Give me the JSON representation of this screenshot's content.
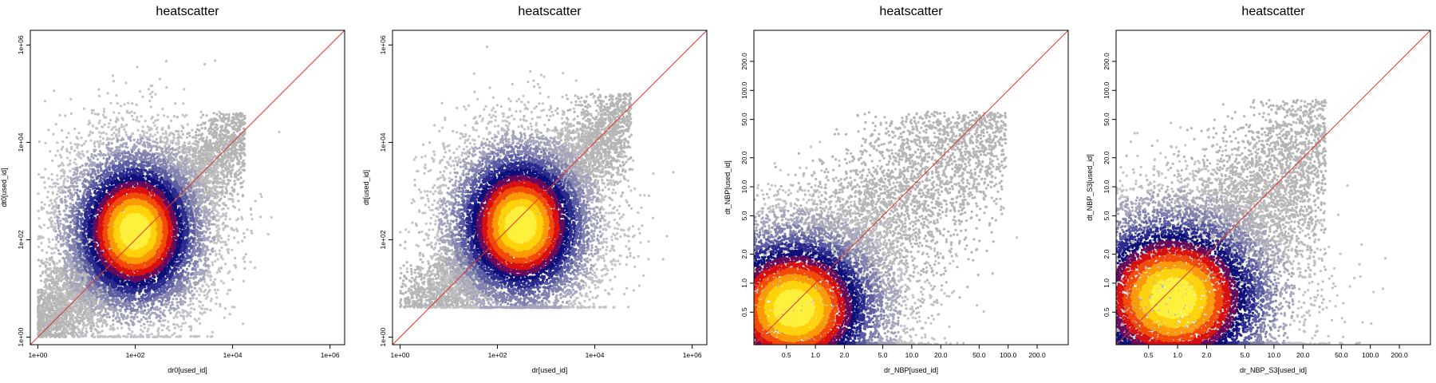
{
  "palette": {
    "outlier": "#b5b5b5",
    "density": [
      "#c2c2c8",
      "#a4a4bd",
      "#8282b0",
      "#5b5ca3",
      "#2a2a8f",
      "#0f0f7a",
      "#6a0a5a",
      "#d80f10",
      "#f24a08",
      "#fb9a06",
      "#ffd20a",
      "#fff03c"
    ],
    "identity_line": "#e0342a"
  },
  "chart_data": [
    {
      "type": "scatter",
      "title": "heatscatter",
      "xlabel": "dr0[used_id]",
      "ylabel": "dt0[used_id]",
      "log_scale": true,
      "xlim": [
        0.7,
        2000000
      ],
      "ylim": [
        0.7,
        2000000
      ],
      "x_ticks": [
        1,
        100,
        10000,
        1000000
      ],
      "x_tick_labels": [
        "1e+00",
        "1e+02",
        "1e+04",
        "1e+06"
      ],
      "y_ticks": [
        1,
        100,
        10000,
        1000000
      ],
      "y_tick_labels": [
        "1e+00",
        "1e+02",
        "1e+04",
        "1e+06"
      ],
      "reference_line": "y = x",
      "density": {
        "points": 16000,
        "core_x": [
          7,
          900
        ],
        "core_y": [
          1,
          2500
        ],
        "peak_x": 100,
        "peak_y": 150,
        "spread_x": 0.32,
        "spread_y": 0.38,
        "range_x": [
          1,
          30000
        ],
        "range_y": [
          1,
          40000
        ],
        "floor_y": 1
      }
    },
    {
      "type": "scatter",
      "title": "heatscatter",
      "xlabel": "dr[used_id]",
      "ylabel": "dt[used_id]",
      "log_scale": true,
      "xlim": [
        0.7,
        2000000
      ],
      "ylim": [
        0.7,
        2000000
      ],
      "x_ticks": [
        1,
        100,
        10000,
        1000000
      ],
      "x_tick_labels": [
        "1e+00",
        "1e+02",
        "1e+04",
        "1e+06"
      ],
      "y_ticks": [
        1,
        100,
        10000,
        1000000
      ],
      "y_tick_labels": [
        "1e+00",
        "1e+02",
        "1e+04",
        "1e+06"
      ],
      "reference_line": "y = x",
      "density": {
        "points": 16000,
        "core_x": [
          20,
          3000
        ],
        "core_y": [
          4,
          3000
        ],
        "peak_x": 300,
        "peak_y": 200,
        "spread_x": 0.33,
        "spread_y": 0.38,
        "range_x": [
          1,
          100000
        ],
        "range_y": [
          4,
          100000
        ],
        "floor_y": 4
      }
    },
    {
      "type": "scatter",
      "title": "heatscatter",
      "xlabel": "dr_NBP[used_id]",
      "ylabel": "dt_NBP[used_id]",
      "log_scale": true,
      "xlim": [
        0.23,
        420
      ],
      "ylim": [
        0.23,
        420
      ],
      "x_ticks": [
        0.5,
        1,
        2,
        5,
        10,
        20,
        50,
        100,
        200
      ],
      "x_tick_labels": [
        "0.5",
        "1.0",
        "2.0",
        "5.0",
        "10.0",
        "20.0",
        "50.0",
        "100.0",
        "200.0"
      ],
      "y_ticks": [
        0.5,
        1,
        2,
        5,
        10,
        20,
        50,
        100,
        200
      ],
      "y_tick_labels": [
        "0.5",
        "1.0",
        "2.0",
        "5.0",
        "10.0",
        "20.0",
        "50.0",
        "100.0",
        "200.0"
      ],
      "reference_line": "y = x",
      "density": {
        "points": 16000,
        "core_x": [
          0.23,
          3
        ],
        "core_y": [
          0.23,
          3
        ],
        "peak_x": 0.6,
        "peak_y": 0.55,
        "spread_x": 0.22,
        "spread_y": 0.2,
        "range_x": [
          0.23,
          130
        ],
        "range_y": [
          0.23,
          60
        ],
        "floor_y": 0.23
      }
    },
    {
      "type": "scatter",
      "title": "heatscatter",
      "xlabel": "dr_NBP_S3[used_id]",
      "ylabel": "dt_NBP_S3[used_id]",
      "log_scale": true,
      "xlim": [
        0.23,
        420
      ],
      "ylim": [
        0.23,
        420
      ],
      "x_ticks": [
        0.5,
        1,
        2,
        5,
        10,
        20,
        50,
        100,
        200
      ],
      "x_tick_labels": [
        "0.5",
        "1.0",
        "2.0",
        "5.0",
        "10.0",
        "20.0",
        "50.0",
        "100.0",
        "200.0"
      ],
      "y_ticks": [
        0.5,
        1,
        2,
        5,
        10,
        20,
        50,
        100,
        200
      ],
      "y_tick_labels": [
        "0.5",
        "1.0",
        "2.0",
        "5.0",
        "10.0",
        "20.0",
        "50.0",
        "100.0",
        "200.0"
      ],
      "reference_line": "y = x",
      "density": {
        "points": 16000,
        "core_x": [
          0.23,
          4
        ],
        "core_y": [
          0.23,
          3
        ],
        "peak_x": 0.9,
        "peak_y": 0.7,
        "spread_x": 0.25,
        "spread_y": 0.22,
        "range_x": [
          0.23,
          45
        ],
        "range_y": [
          0.23,
          80
        ],
        "floor_y": 0.23
      }
    }
  ]
}
